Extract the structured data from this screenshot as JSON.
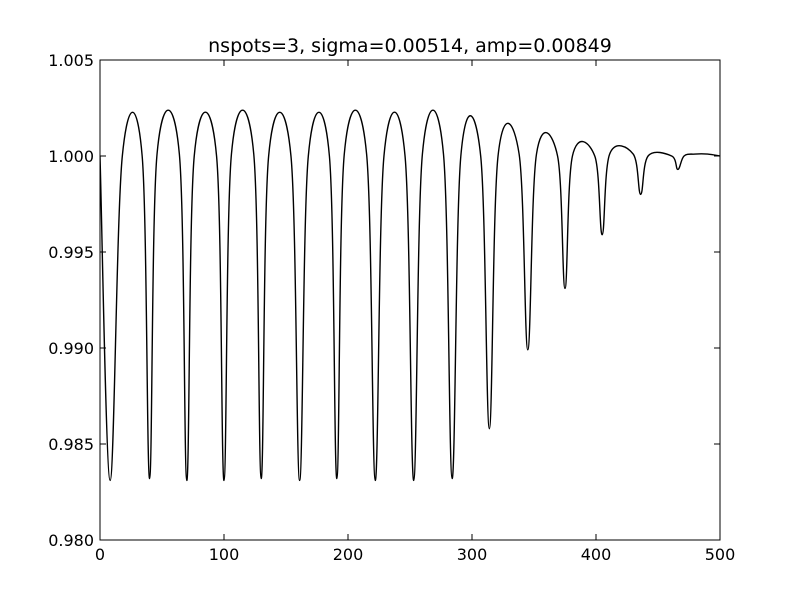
{
  "chart_data": {
    "type": "line",
    "title": "nspots=3, sigma=0.00514, amp=0.00849",
    "xlabel": "",
    "ylabel": "",
    "xlim": [
      0,
      500
    ],
    "ylim": [
      0.98,
      1.005
    ],
    "xticks": [
      "0",
      "100",
      "200",
      "300",
      "400",
      "500"
    ],
    "yticks": [
      "0.980",
      "0.985",
      "0.990",
      "0.995",
      "1.000",
      "1.005"
    ],
    "grid": false,
    "series": [
      {
        "color": "#000000",
        "x": [
          0,
          8.2,
          18,
          34,
          40,
          46,
          64,
          70,
          76,
          94,
          100,
          106,
          124,
          130,
          136,
          154,
          161,
          168,
          185,
          191,
          197,
          215,
          222,
          229,
          246,
          253,
          260,
          277,
          284,
          291,
          307,
          314,
          321,
          338,
          345,
          352,
          369,
          375,
          381,
          399,
          405,
          411,
          430,
          436,
          442,
          461,
          466,
          471,
          480,
          490,
          500
        ],
        "y": [
          1.0,
          0.9831,
          1.0,
          1.0,
          0.9832,
          1.0001,
          1.0001,
          0.9831,
          1.0,
          1.0,
          0.9831,
          1.0001,
          1.0001,
          0.9832,
          1.0,
          1.0,
          0.9831,
          1.0,
          1.0,
          0.9832,
          1.0001,
          1.0001,
          0.9831,
          1.0,
          1.0,
          0.9831,
          1.0001,
          1.0001,
          0.9832,
          1.0,
          1.0,
          0.9858,
          1.0,
          1.0001,
          0.9899,
          1.0001,
          1.0,
          0.9931,
          1.0,
          1.0,
          0.9959,
          1.0001,
          1.0001,
          0.998,
          1.0,
          1.0,
          0.9993,
          1.0,
          1.0001,
          1.0001,
          1.0
        ]
      }
    ]
  }
}
